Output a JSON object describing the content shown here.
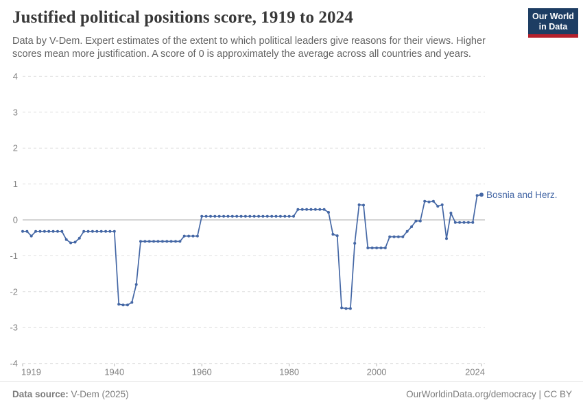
{
  "header": {
    "title": "Justified political positions score, 1919 to 2024",
    "subtitle_line1": "Data by V-Dem. Expert estimates of the extent to which political leaders give reasons for their views. Higher",
    "subtitle_line2": "scores mean more justification. A score of 0 is approximately the average across all countries and years.",
    "logo_line1": "Our World",
    "logo_line2": "in Data"
  },
  "chart_data": {
    "type": "line",
    "title": "Justified political positions score, 1919 to 2024",
    "xlabel": "",
    "ylabel": "",
    "xlim": [
      1919,
      2024
    ],
    "ylim": [
      -4,
      4
    ],
    "y_ticks": [
      4,
      3,
      2,
      1,
      0,
      -1,
      -2,
      -3,
      -4
    ],
    "x_ticks": [
      1919,
      1940,
      1960,
      1980,
      2000,
      2024
    ],
    "grid": "horizontal dashed gridlines, solid zero line",
    "legend_position": "label at end of line",
    "series": [
      {
        "name": "Bosnia and Herz.",
        "color": "#4467a5",
        "years": [
          1919,
          1920,
          1921,
          1922,
          1923,
          1924,
          1925,
          1926,
          1927,
          1928,
          1929,
          1930,
          1931,
          1932,
          1933,
          1934,
          1935,
          1936,
          1937,
          1938,
          1939,
          1940,
          1941,
          1942,
          1943,
          1944,
          1945,
          1946,
          1947,
          1948,
          1949,
          1950,
          1951,
          1952,
          1953,
          1954,
          1955,
          1956,
          1957,
          1958,
          1959,
          1960,
          1961,
          1962,
          1963,
          1964,
          1965,
          1966,
          1967,
          1968,
          1969,
          1970,
          1971,
          1972,
          1973,
          1974,
          1975,
          1976,
          1977,
          1978,
          1979,
          1980,
          1981,
          1982,
          1983,
          1984,
          1985,
          1986,
          1987,
          1988,
          1989,
          1990,
          1991,
          1992,
          1993,
          1994,
          1995,
          1996,
          1997,
          1998,
          1999,
          2000,
          2001,
          2002,
          2003,
          2004,
          2005,
          2006,
          2007,
          2008,
          2009,
          2010,
          2011,
          2012,
          2013,
          2014,
          2015,
          2016,
          2017,
          2018,
          2019,
          2020,
          2021,
          2022,
          2023,
          2024
        ],
        "values": [
          -0.32,
          -0.32,
          -0.45,
          -0.32,
          -0.32,
          -0.32,
          -0.32,
          -0.32,
          -0.32,
          -0.32,
          -0.55,
          -0.64,
          -0.62,
          -0.51,
          -0.32,
          -0.32,
          -0.32,
          -0.32,
          -0.32,
          -0.32,
          -0.32,
          -0.32,
          -2.35,
          -2.37,
          -2.37,
          -2.3,
          -1.8,
          -0.6,
          -0.6,
          -0.6,
          -0.6,
          -0.6,
          -0.6,
          -0.6,
          -0.6,
          -0.6,
          -0.6,
          -0.45,
          -0.45,
          -0.45,
          -0.45,
          0.1,
          0.1,
          0.1,
          0.1,
          0.1,
          0.1,
          0.1,
          0.1,
          0.1,
          0.1,
          0.1,
          0.1,
          0.1,
          0.1,
          0.1,
          0.1,
          0.1,
          0.1,
          0.1,
          0.1,
          0.1,
          0.1,
          0.29,
          0.29,
          0.29,
          0.29,
          0.29,
          0.29,
          0.29,
          0.21,
          -0.4,
          -0.44,
          -2.45,
          -2.47,
          -2.47,
          -0.65,
          0.42,
          0.41,
          -0.78,
          -0.78,
          -0.78,
          -0.78,
          -0.78,
          -0.47,
          -0.47,
          -0.47,
          -0.47,
          -0.32,
          -0.19,
          -0.03,
          -0.03,
          0.52,
          0.5,
          0.52,
          0.38,
          0.42,
          -0.52,
          0.19,
          -0.07,
          -0.07,
          -0.07,
          -0.07,
          -0.07,
          0.68,
          0.7
        ]
      }
    ]
  },
  "footer": {
    "source_label": "Data source:",
    "source_value": "V-Dem (2025)",
    "license_text": "OurWorldinData.org/democracy | CC BY"
  },
  "colors": {
    "line": "#4467a5",
    "grid": "#dedede",
    "zero_line": "#a8a8a8",
    "axis_text": "#858585",
    "tick_mark": "#b3b3b3",
    "title": "#383838",
    "subtitle": "#636363",
    "logo_bg": "#1d3d63",
    "logo_red": "#b5202c",
    "footer_text": "#7d7d7d"
  }
}
